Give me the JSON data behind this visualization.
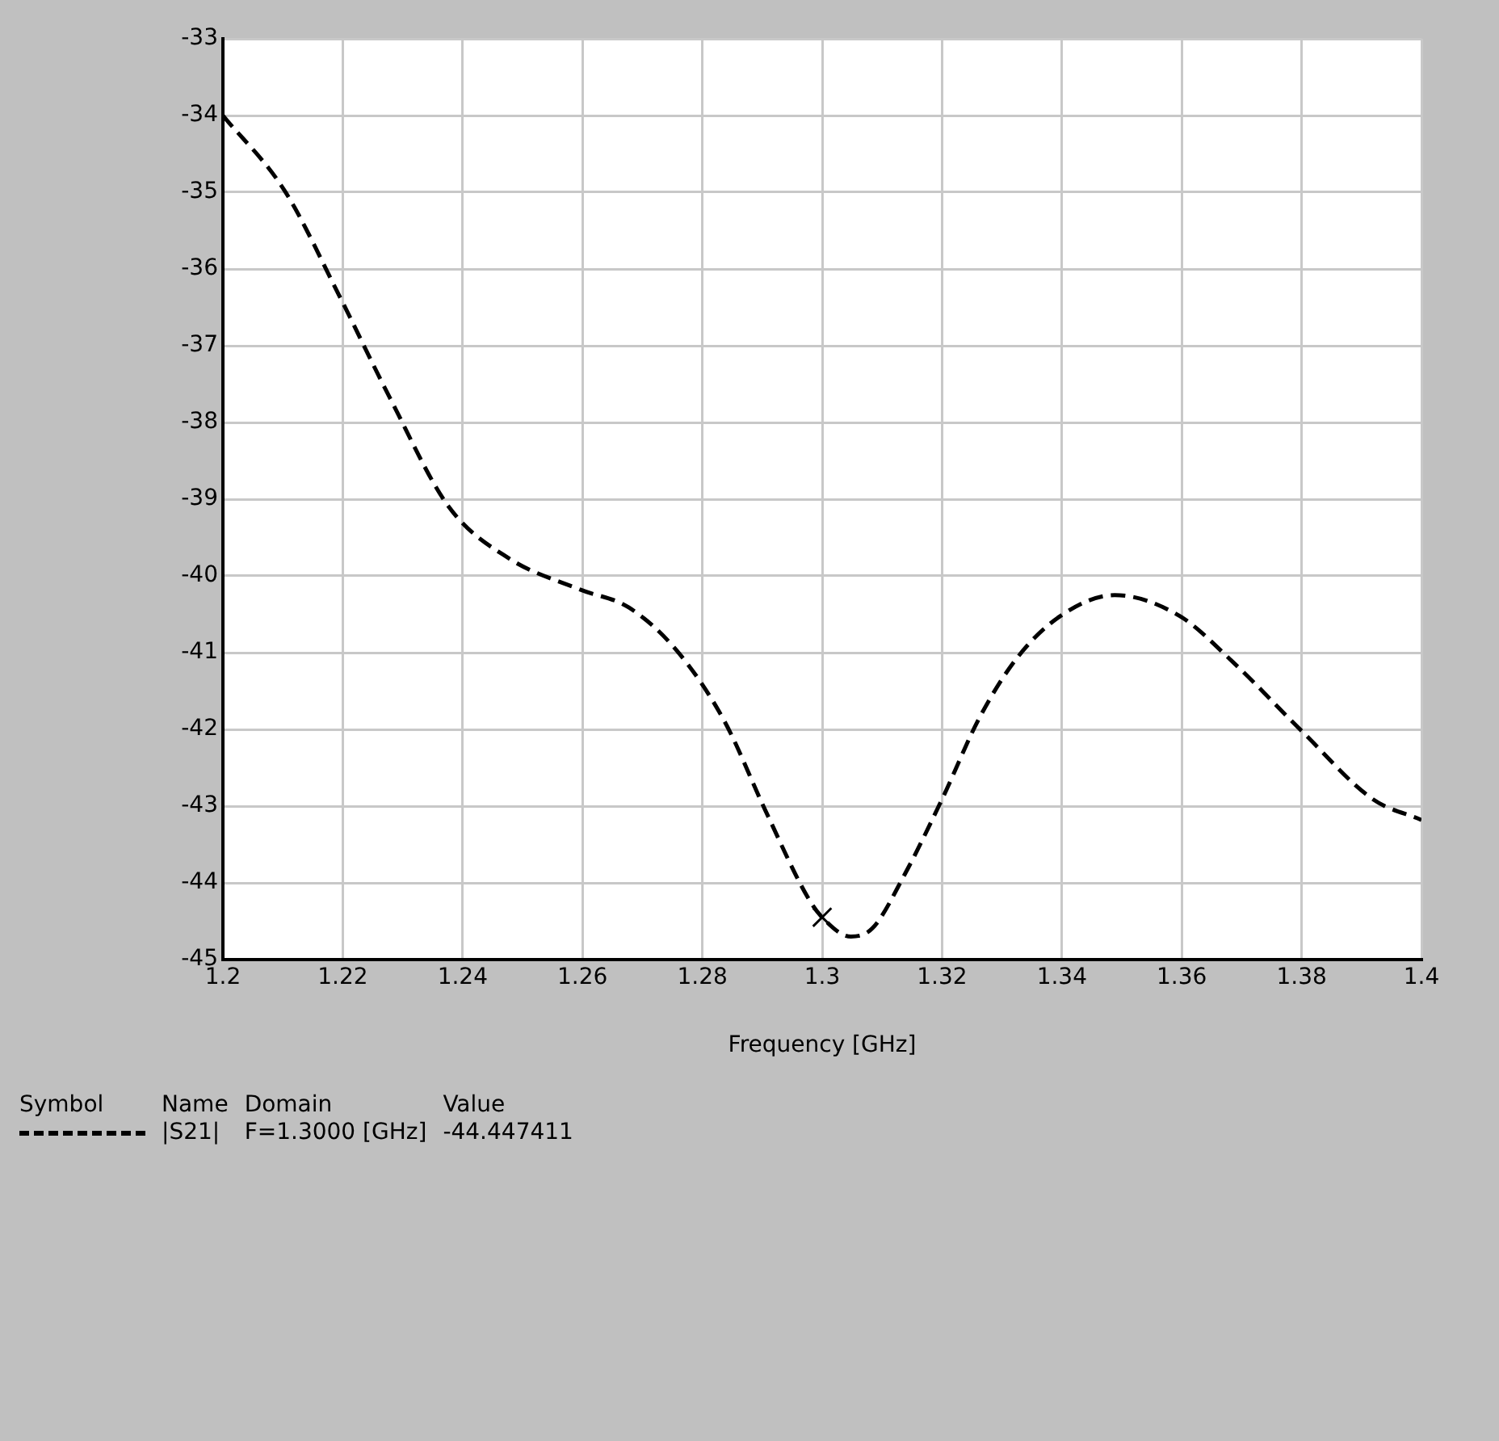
{
  "chart_data": {
    "type": "line",
    "xlabel": "Frequency [GHz]",
    "x": [
      1.2,
      1.2103,
      1.2193,
      1.2278,
      1.2377,
      1.2477,
      1.2597,
      1.2677,
      1.2757,
      1.2836,
      1.2906,
      1.2976,
      1.3,
      1.3048,
      1.3084,
      1.3137,
      1.32,
      1.3263,
      1.3326,
      1.3398,
      1.3488,
      1.3596,
      1.3685,
      1.38,
      1.3919,
      1.4
    ],
    "series": [
      {
        "name": "|S21|",
        "color": "#000000",
        "values": [
          -34.0,
          -34.98,
          -36.33,
          -37.67,
          -39.1,
          -39.77,
          -40.18,
          -40.41,
          -40.97,
          -41.88,
          -43.07,
          -44.19,
          -44.45,
          -44.7,
          -44.59,
          -43.9,
          -42.91,
          -41.84,
          -41.06,
          -40.52,
          -40.25,
          -40.52,
          -41.12,
          -42.02,
          -42.91,
          -43.18
        ]
      },
      {
        "type": "scatter",
        "x": [
          1.3
        ],
        "color": "#000000",
        "marker": "cross",
        "values": [
          -44.447411
        ]
      }
    ],
    "xlim": [
      1.2,
      1.4
    ],
    "xticks": [
      1.2,
      1.22,
      1.24,
      1.26,
      1.28,
      1.3,
      1.32,
      1.34,
      1.36,
      1.38,
      1.4
    ],
    "ylim": [
      -45,
      -33
    ],
    "yticks": [
      -45,
      -44,
      -43,
      -42,
      -41,
      -40,
      -39,
      -38,
      -37,
      -36,
      -35,
      -34,
      -33
    ],
    "grid": true,
    "legend": "bottom left",
    "line_style": "dashed",
    "marker": "none",
    "annotations": [
      "Symbol",
      "Name",
      "Domain",
      "Value",
      "F=1.3000 [GHz]",
      "-44.447411"
    ]
  }
}
